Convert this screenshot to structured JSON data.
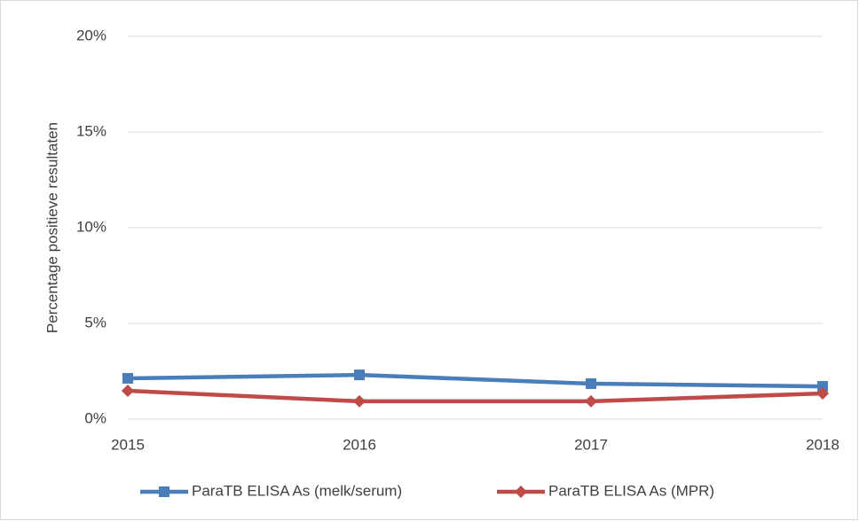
{
  "chart_data": {
    "type": "line",
    "y_label": "Percentage positieve resultaten",
    "categories": [
      "2015",
      "2016",
      "2017",
      "2018"
    ],
    "series": [
      {
        "name": "ParaTB ELISA As (melk/serum)",
        "color": "#4a7ebb",
        "marker": "square",
        "values": [
          2.13,
          2.31,
          1.85,
          1.71
        ]
      },
      {
        "name": "ParaTB ELISA As (MPR)",
        "color": "#be4b48",
        "marker": "diamond",
        "values": [
          1.48,
          0.93,
          0.93,
          1.34
        ]
      }
    ],
    "ylim": [
      0,
      20
    ],
    "yticks": [
      {
        "value": 0,
        "label": "0%"
      },
      {
        "value": 5,
        "label": "5%"
      },
      {
        "value": 10,
        "label": "10%"
      },
      {
        "value": 15,
        "label": "15%"
      },
      {
        "value": 20,
        "label": "20%"
      }
    ],
    "grid": true,
    "legend": "bottom"
  }
}
